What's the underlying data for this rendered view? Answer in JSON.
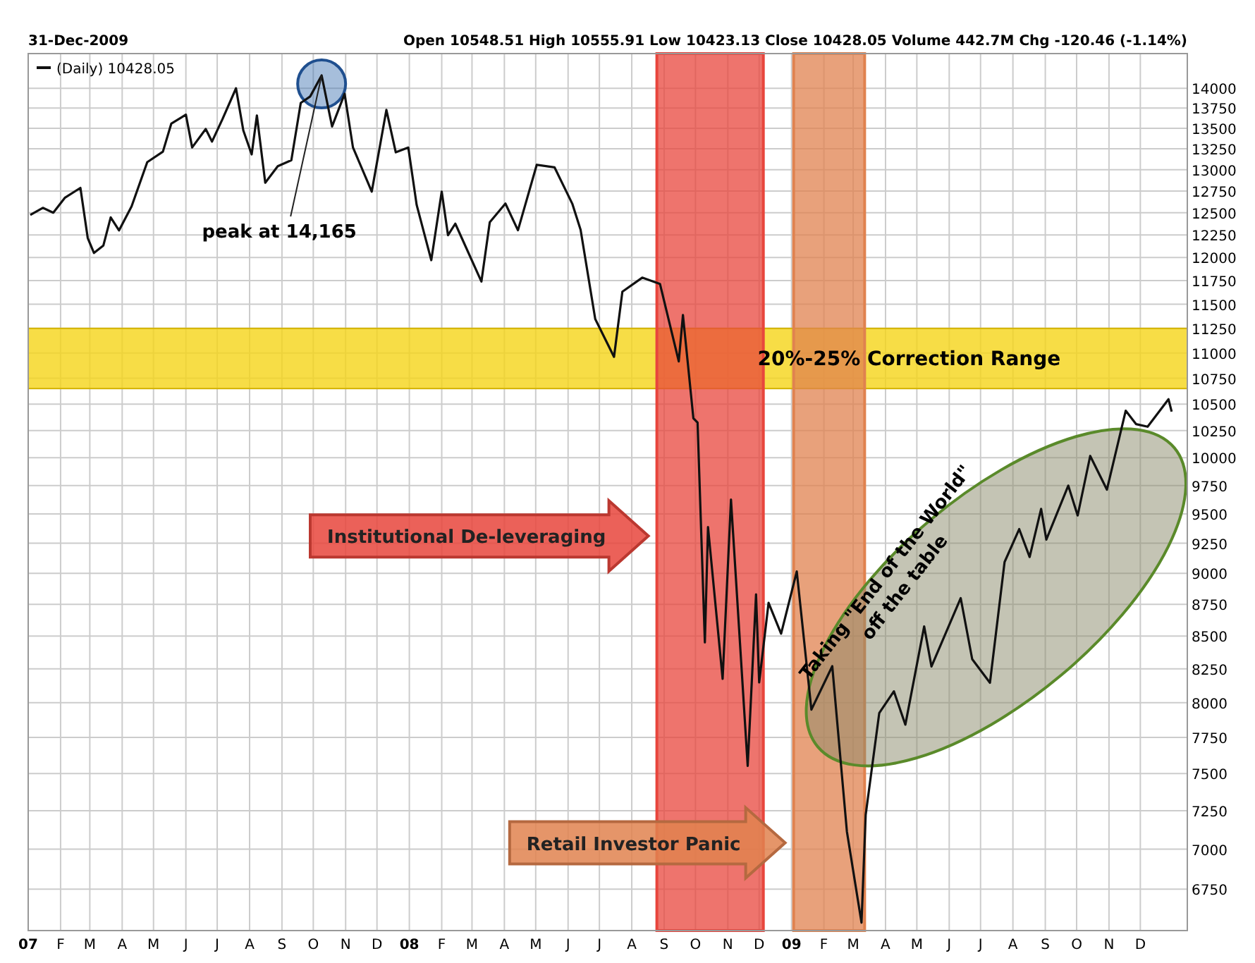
{
  "chart_data": {
    "type": "line",
    "subtitle": "31-Dec-2009",
    "annotations": [
      "Open 10548.51 High 10555.91 Low 10423.13 Close 10428.05 Volume 442.7M Chg -120.46 (-1.14%)",
      {
        "text": "peak at 14,165",
        "x": "2007-10-09",
        "y": 14165
      },
      "Taking \"End of the World\" off the table"
    ],
    "series": [
      {
        "name": "(Daily) 10428.05",
        "color": "#111111",
        "x": [
          "2007-01-03",
          "2007-01-15",
          "2007-01-25",
          "2007-02-05",
          "2007-02-20",
          "2007-02-27",
          "2007-03-05",
          "2007-03-14",
          "2007-03-21",
          "2007-03-29",
          "2007-04-10",
          "2007-04-25",
          "2007-05-10",
          "2007-05-18",
          "2007-06-01",
          "2007-06-07",
          "2007-06-20",
          "2007-06-26",
          "2007-07-06",
          "2007-07-19",
          "2007-07-26",
          "2007-08-03",
          "2007-08-08",
          "2007-08-16",
          "2007-08-28",
          "2007-09-10",
          "2007-09-19",
          "2007-09-28",
          "2007-10-09",
          "2007-10-19",
          "2007-10-31",
          "2007-11-08",
          "2007-11-26",
          "2007-12-10",
          "2007-12-19",
          "2007-12-31",
          "2008-01-08",
          "2008-01-22",
          "2008-02-01",
          "2008-02-07",
          "2008-02-14",
          "2008-03-10",
          "2008-03-18",
          "2008-04-02",
          "2008-04-14",
          "2008-05-02",
          "2008-05-19",
          "2008-06-05",
          "2008-06-13",
          "2008-06-27",
          "2008-07-15",
          "2008-07-23",
          "2008-08-11",
          "2008-08-28",
          "2008-09-15",
          "2008-09-19",
          "2008-09-29",
          "2008-10-03",
          "2008-10-10",
          "2008-10-13",
          "2008-10-27",
          "2008-11-04",
          "2008-11-20",
          "2008-11-28",
          "2008-12-01",
          "2008-12-10",
          "2008-12-22",
          "2009-01-06",
          "2009-01-20",
          "2009-02-09",
          "2009-02-23",
          "2009-03-09",
          "2009-03-13",
          "2009-03-26",
          "2009-04-09",
          "2009-04-20",
          "2009-05-08",
          "2009-05-15",
          "2009-06-12",
          "2009-06-23",
          "2009-07-10",
          "2009-07-24",
          "2009-08-07",
          "2009-08-17",
          "2009-08-28",
          "2009-09-02",
          "2009-09-23",
          "2009-10-02",
          "2009-10-14",
          "2009-10-30",
          "2009-11-17",
          "2009-11-27",
          "2009-12-08",
          "2009-12-28",
          "2009-12-31"
        ],
        "values": [
          12474,
          12556,
          12500,
          12670,
          12786,
          12216,
          12050,
          12133,
          12447,
          12300,
          12573,
          13089,
          13215,
          13556,
          13668,
          13266,
          13490,
          13337,
          13611,
          14000,
          13473,
          13182,
          13658,
          12846,
          13041,
          13113,
          13815,
          13896,
          14165,
          13522,
          13930,
          13266,
          12743,
          13727,
          13207,
          13264,
          12589,
          11971,
          12743,
          12247,
          12376,
          11740,
          12392,
          12605,
          12302,
          13058,
          13028,
          12604,
          12307,
          11347,
          10962,
          11632,
          11782,
          11715,
          10917,
          11388,
          10365,
          10325,
          8451,
          9387,
          8175,
          9625,
          7552,
          8829,
          8149,
          8761,
          8519,
          9015,
          7949,
          8270,
          7114,
          6547,
          7223,
          7925,
          8083,
          7841,
          8575,
          8268,
          8799,
          8323,
          8146,
          9093,
          9370,
          9135,
          9544,
          9281,
          9749,
          9487,
          10016,
          9713,
          10437,
          10310,
          10286,
          10547,
          10428
        ]
      }
    ],
    "xlim": [
      "2007-01-01",
      "2010-01-15"
    ],
    "xticks": [
      {
        "value": "2007-01-01",
        "label": "07"
      },
      {
        "value": "2007-02-01",
        "label": "F"
      },
      {
        "value": "2007-03-01",
        "label": "M"
      },
      {
        "value": "2007-04-01",
        "label": "A"
      },
      {
        "value": "2007-05-01",
        "label": "M"
      },
      {
        "value": "2007-06-01",
        "label": "J"
      },
      {
        "value": "2007-07-01",
        "label": "J"
      },
      {
        "value": "2007-08-01",
        "label": "A"
      },
      {
        "value": "2007-09-01",
        "label": "S"
      },
      {
        "value": "2007-10-01",
        "label": "O"
      },
      {
        "value": "2007-11-01",
        "label": "N"
      },
      {
        "value": "2007-12-01",
        "label": "D"
      },
      {
        "value": "2008-01-01",
        "label": "08"
      },
      {
        "value": "2008-02-01",
        "label": "F"
      },
      {
        "value": "2008-03-01",
        "label": "M"
      },
      {
        "value": "2008-04-01",
        "label": "A"
      },
      {
        "value": "2008-05-01",
        "label": "M"
      },
      {
        "value": "2008-06-01",
        "label": "J"
      },
      {
        "value": "2008-07-01",
        "label": "J"
      },
      {
        "value": "2008-08-01",
        "label": "A"
      },
      {
        "value": "2008-09-01",
        "label": "S"
      },
      {
        "value": "2008-10-01",
        "label": "O"
      },
      {
        "value": "2008-11-01",
        "label": "N"
      },
      {
        "value": "2008-12-01",
        "label": "D"
      },
      {
        "value": "2009-01-01",
        "label": "09"
      },
      {
        "value": "2009-02-01",
        "label": "F"
      },
      {
        "value": "2009-03-01",
        "label": "M"
      },
      {
        "value": "2009-04-01",
        "label": "A"
      },
      {
        "value": "2009-05-01",
        "label": "M"
      },
      {
        "value": "2009-06-01",
        "label": "J"
      },
      {
        "value": "2009-07-01",
        "label": "J"
      },
      {
        "value": "2009-08-01",
        "label": "A"
      },
      {
        "value": "2009-09-01",
        "label": "S"
      },
      {
        "value": "2009-10-01",
        "label": "O"
      },
      {
        "value": "2009-11-01",
        "label": "N"
      },
      {
        "value": "2009-12-01",
        "label": "D"
      }
    ],
    "ylim": [
      6500,
      14450
    ],
    "log": true,
    "yticks": [
      6750,
      7000,
      7250,
      7500,
      7750,
      8000,
      8250,
      8500,
      8750,
      9000,
      9250,
      9500,
      9750,
      10000,
      10250,
      10500,
      10750,
      11000,
      11250,
      11500,
      11750,
      12000,
      12250,
      12500,
      12750,
      13000,
      13250,
      13500,
      13750,
      14000
    ],
    "bands": [
      {
        "axis": "y",
        "from": 10650,
        "to": 11250,
        "label": "20%-25% Correction Range",
        "color": "#f5d418"
      },
      {
        "axis": "x",
        "from": "2008-08-25",
        "to": "2008-12-05",
        "label": "Institutional De-leveraging",
        "color": "#e8453c"
      },
      {
        "axis": "x",
        "from": "2009-01-03",
        "to": "2009-03-12",
        "label": "Retail Investor Panic",
        "color": "#e0824f"
      }
    ],
    "grid": true,
    "legend": "top left",
    "line_style": "solid",
    "marker": "none"
  }
}
